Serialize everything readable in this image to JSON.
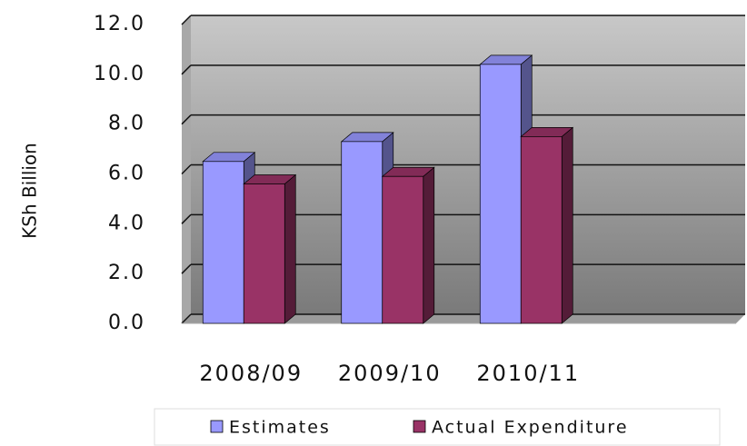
{
  "chart_data": {
    "type": "bar3d",
    "y_label": "KSh Billion",
    "categories": [
      "2008/09",
      "2009/10",
      "2010/11",
      null
    ],
    "series": [
      {
        "name": "Estimates",
        "color": "#9999ff",
        "values": [
          6.5,
          7.3,
          10.4,
          null
        ]
      },
      {
        "name": "Actual Expenditure",
        "color": "#993366",
        "values": [
          5.6,
          5.9,
          7.5,
          null
        ]
      }
    ],
    "ylim": [
      0,
      12
    ],
    "yticks": [
      {
        "value": 0,
        "label": "0.0"
      },
      {
        "value": 2,
        "label": "2.0"
      },
      {
        "value": 4,
        "label": "4.0"
      },
      {
        "value": 6,
        "label": "6.0"
      },
      {
        "value": 8,
        "label": "8.0"
      },
      {
        "value": 10,
        "label": "10.0"
      },
      {
        "value": 12,
        "label": "12.0"
      }
    ],
    "grid": true
  }
}
